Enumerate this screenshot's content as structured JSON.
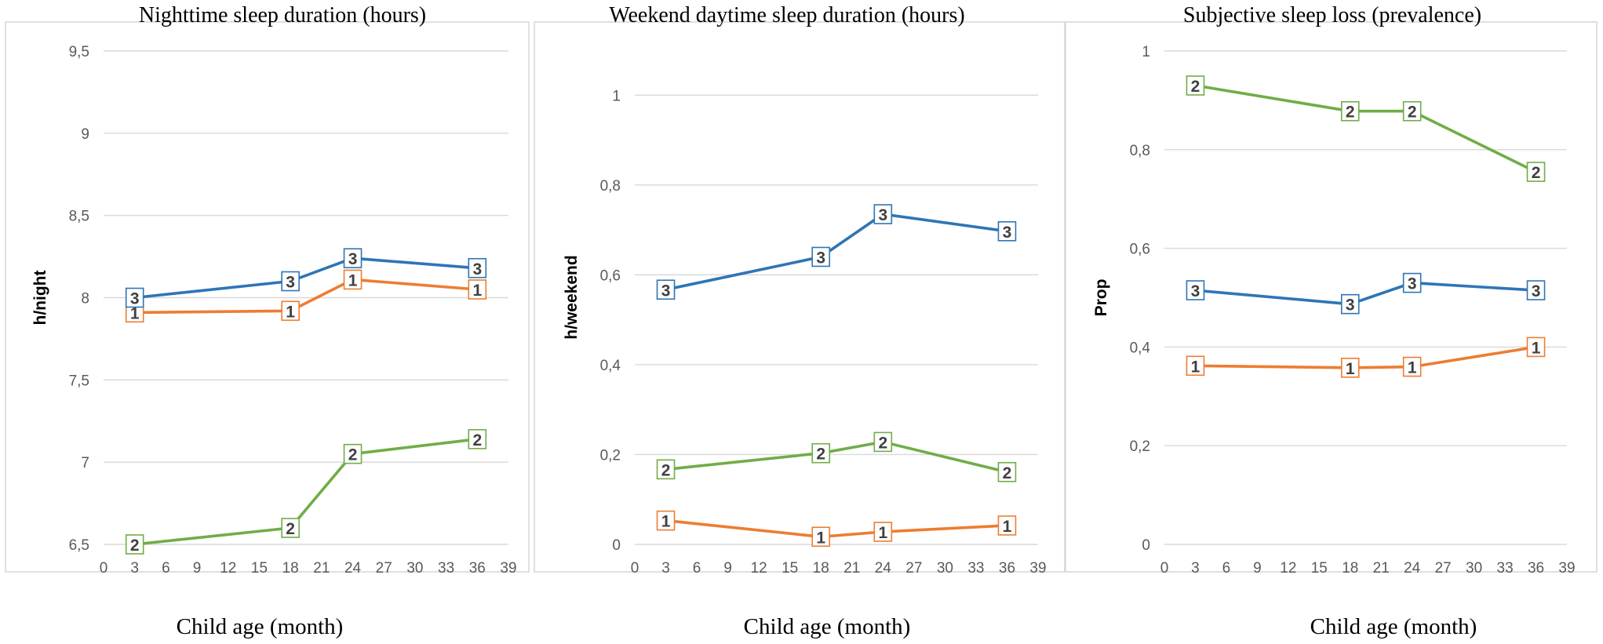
{
  "chart_data": [
    {
      "type": "line",
      "title": "Nighttime sleep duration (hours)",
      "xlabel": "Child age (month)",
      "ylabel": "h/night",
      "x_ticks": [
        "0",
        "3",
        "6",
        "9",
        "12",
        "15",
        "18",
        "21",
        "24",
        "27",
        "30",
        "33",
        "36",
        "39"
      ],
      "y_ticks": [
        "6,5",
        "7",
        "7,5",
        "8",
        "8,5",
        "9",
        "9,5"
      ],
      "xlim": [
        0,
        39
      ],
      "ylim": [
        6.5,
        9.5
      ],
      "grid": true,
      "series": [
        {
          "name": "1",
          "color": "#ed7d31",
          "x": [
            3,
            18,
            24,
            36
          ],
          "values": [
            7.91,
            7.92,
            8.11,
            8.05
          ]
        },
        {
          "name": "2",
          "color": "#70ad47",
          "x": [
            3,
            18,
            24,
            36
          ],
          "values": [
            6.5,
            6.6,
            7.05,
            7.14
          ]
        },
        {
          "name": "3",
          "color": "#2e75b6",
          "x": [
            3,
            18,
            24,
            36
          ],
          "values": [
            8.0,
            8.1,
            8.24,
            8.18
          ]
        }
      ]
    },
    {
      "type": "line",
      "title": "Weekend daytime sleep duration (hours)",
      "xlabel": "Child age (month)",
      "ylabel": "h/weekend",
      "x_ticks": [
        "0",
        "3",
        "6",
        "9",
        "12",
        "15",
        "18",
        "21",
        "24",
        "27",
        "30",
        "33",
        "36",
        "39"
      ],
      "y_ticks": [
        "0",
        "0,2",
        "0,4",
        "0,6",
        "0,8",
        "1"
      ],
      "xlim": [
        0,
        39
      ],
      "ylim": [
        0,
        1.1
      ],
      "grid": true,
      "series": [
        {
          "name": "1",
          "color": "#ed7d31",
          "x": [
            3,
            18,
            24,
            36
          ],
          "values": [
            0.053,
            0.017,
            0.028,
            0.042
          ]
        },
        {
          "name": "2",
          "color": "#70ad47",
          "x": [
            3,
            18,
            24,
            36
          ],
          "values": [
            0.167,
            0.203,
            0.228,
            0.161
          ]
        },
        {
          "name": "3",
          "color": "#2e75b6",
          "x": [
            3,
            18,
            24,
            36
          ],
          "values": [
            0.567,
            0.64,
            0.735,
            0.697
          ]
        }
      ]
    },
    {
      "type": "line",
      "title": "Subjective sleep loss (prevalence)",
      "xlabel": "Child age (month)",
      "ylabel": "Prop",
      "x_ticks": [
        "0",
        "3",
        "6",
        "9",
        "12",
        "15",
        "18",
        "21",
        "24",
        "27",
        "30",
        "33",
        "36",
        "39"
      ],
      "y_ticks": [
        "0",
        "0,2",
        "0,4",
        "0,6",
        "0,8",
        "1"
      ],
      "xlim": [
        0,
        39
      ],
      "ylim": [
        0,
        1
      ],
      "grid": true,
      "series": [
        {
          "name": "1",
          "color": "#ed7d31",
          "x": [
            3,
            18,
            24,
            36
          ],
          "values": [
            0.362,
            0.358,
            0.36,
            0.4
          ]
        },
        {
          "name": "2",
          "color": "#70ad47",
          "x": [
            3,
            18,
            24,
            36
          ],
          "values": [
            0.93,
            0.878,
            0.878,
            0.755
          ]
        },
        {
          "name": "3",
          "color": "#2e75b6",
          "x": [
            3,
            18,
            24,
            36
          ],
          "values": [
            0.515,
            0.487,
            0.53,
            0.515
          ]
        }
      ]
    }
  ]
}
